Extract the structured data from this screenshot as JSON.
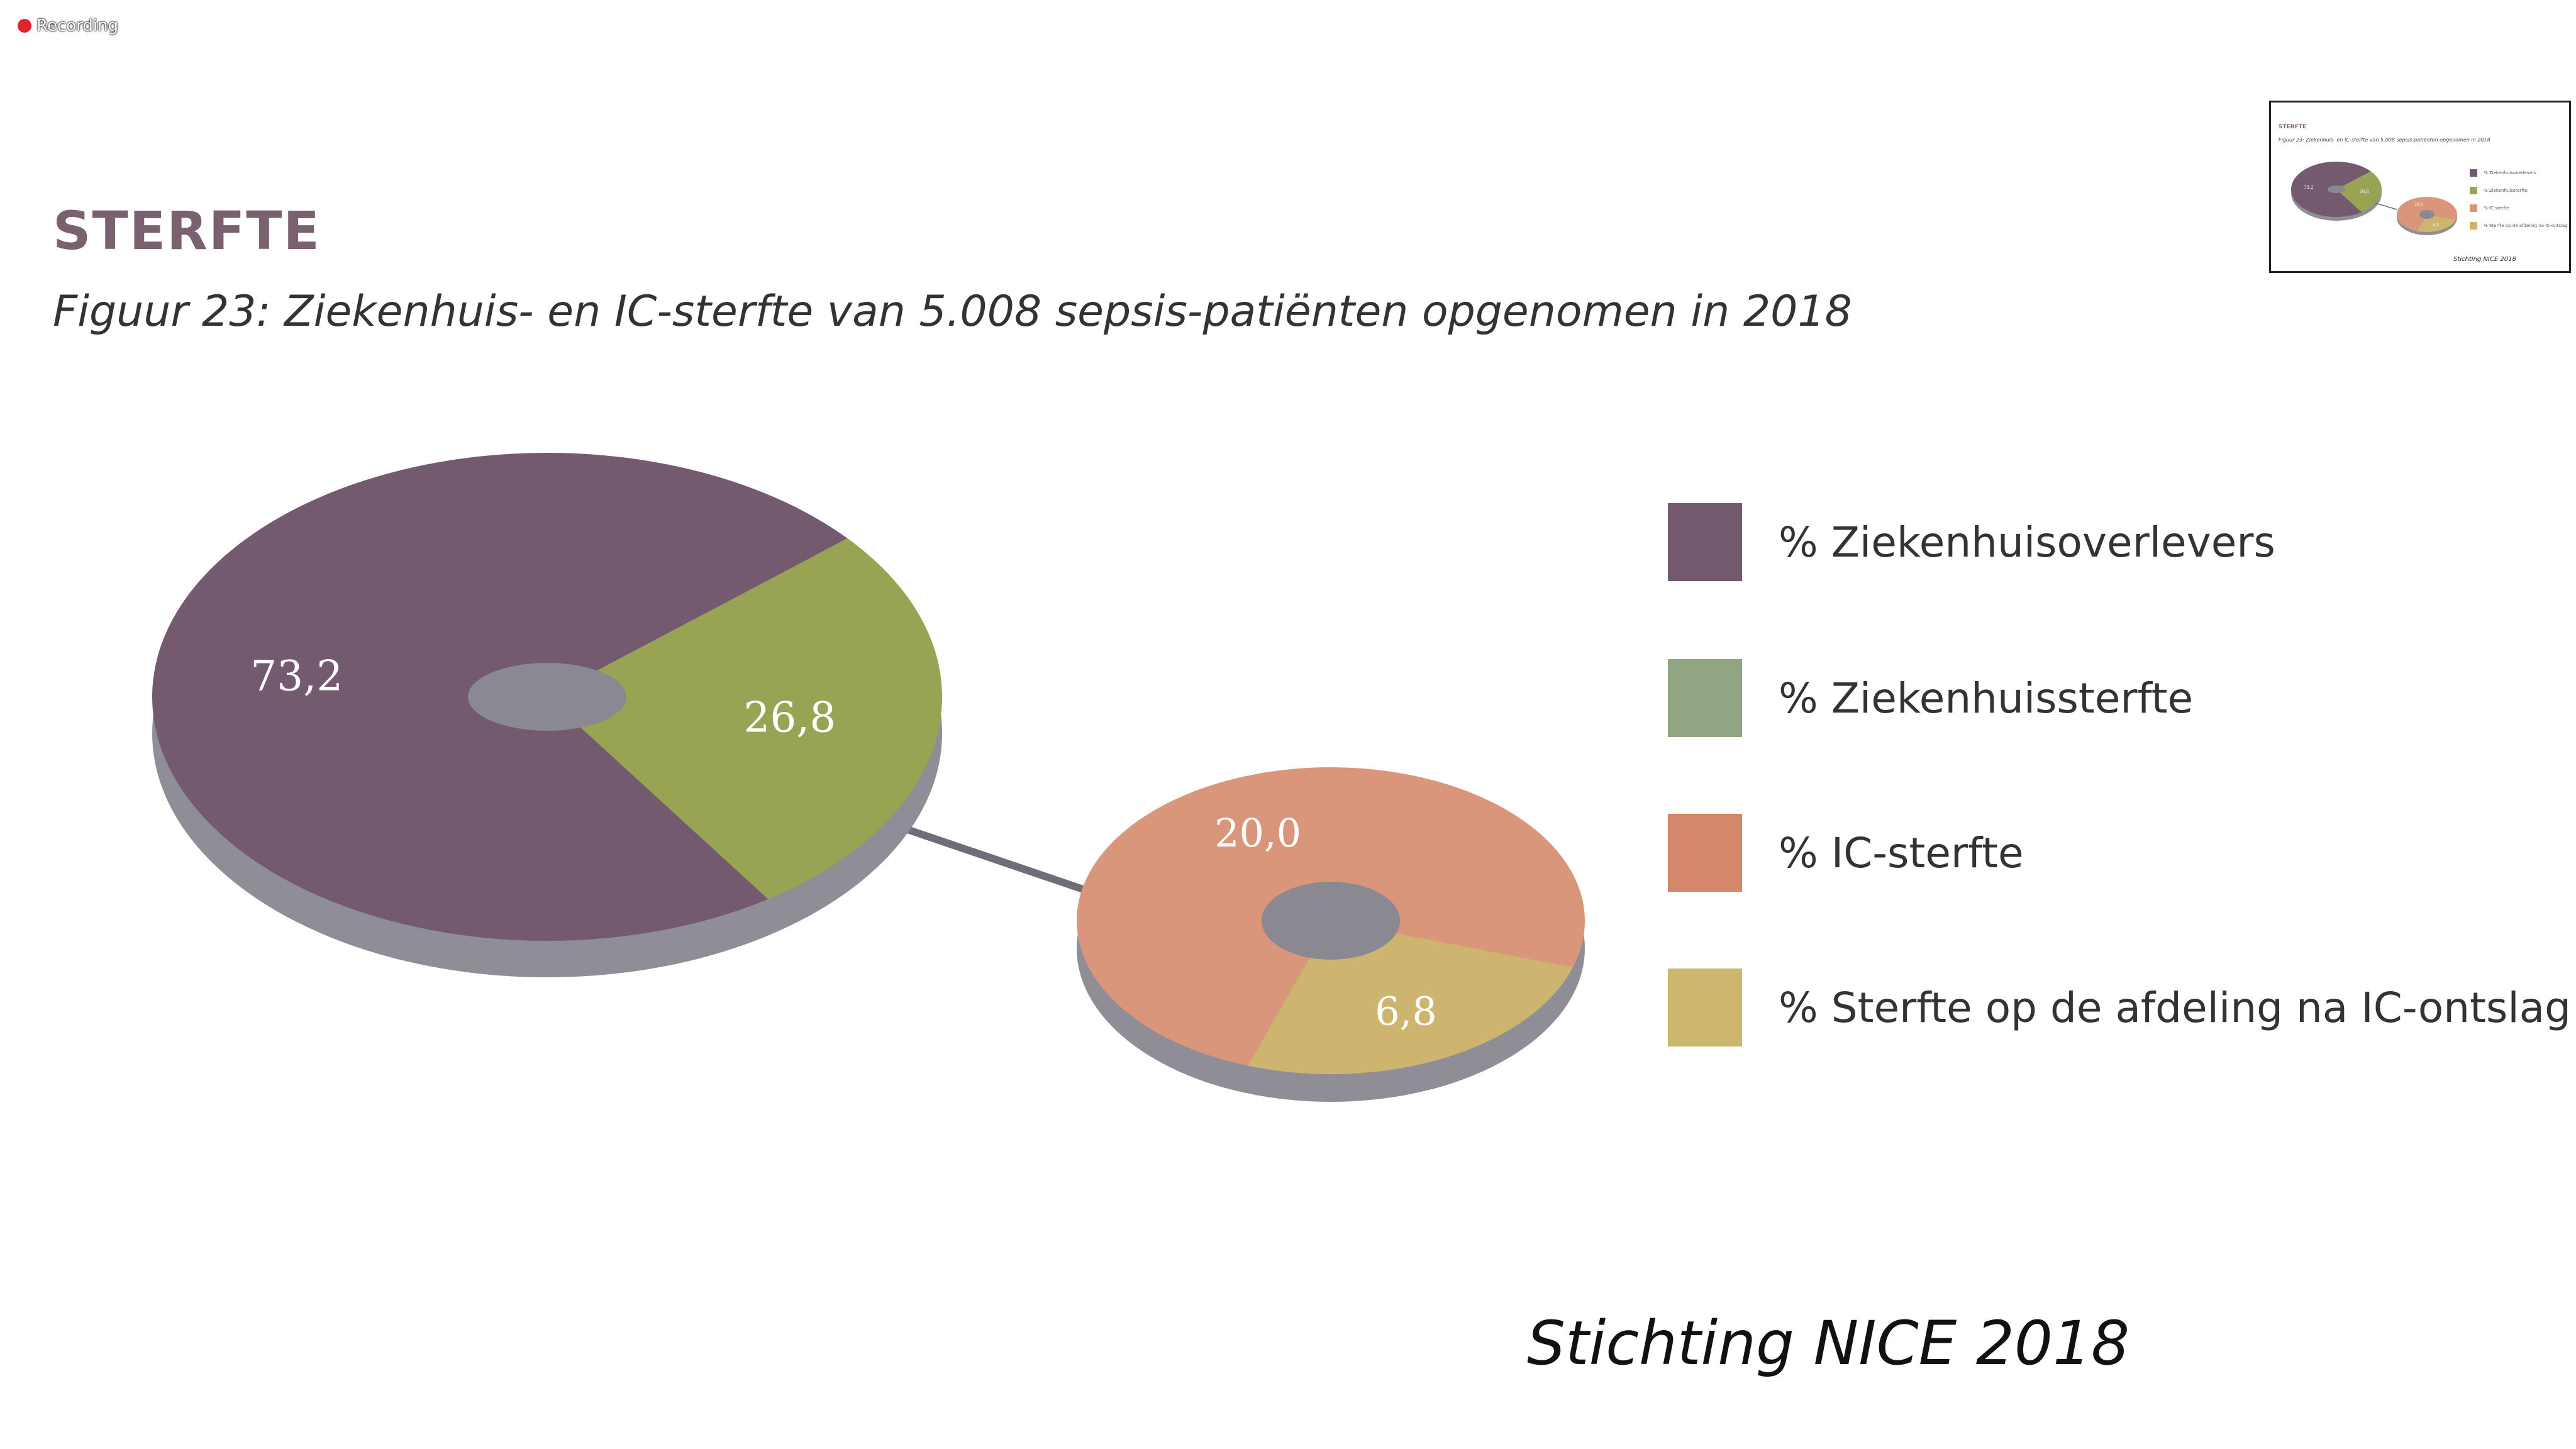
{
  "recording": {
    "label": "Recording"
  },
  "slide": {
    "title": "STERFTE",
    "subtitle": "Figuur 23: Ziekenhuis- en IC-sterfte van 5.008 sepsis-patiënten opgenomen in 2018",
    "source": "Stichting NICE 2018"
  },
  "colors": {
    "ziekenhuisoverlevers": "#735a6e",
    "ziekenhuissterfte": "#98a454",
    "ic_sterfte": "#d9967a",
    "sterfte_afdeling": "#cdb56f",
    "hole": "#8a8890",
    "side": "#8f8e96",
    "connector": "#6e6e78"
  },
  "legend": [
    {
      "label": "% Ziekenhuisoverlevers",
      "color": "#735a6e"
    },
    {
      "label": "% Ziekenhuissterfte",
      "color": "#92a582"
    },
    {
      "label": "% IC-sterfte",
      "color": "#d4876a"
    },
    {
      "label": "% Sterfte op de afdeling na IC-ontslag",
      "color": "#cdb76e"
    }
  ],
  "chart_data": [
    {
      "type": "pie",
      "title": "",
      "categories": [
        "% Ziekenhuisoverlevers",
        "% Ziekenhuissterfte"
      ],
      "values": [
        73.2,
        26.8
      ],
      "value_labels": [
        "73,2",
        "26,8"
      ]
    },
    {
      "type": "pie",
      "title": "",
      "categories": [
        "% IC-sterfte",
        "% Sterfte op de afdeling na IC-ontslag"
      ],
      "values": [
        20.0,
        6.8
      ],
      "value_labels": [
        "20,0",
        "6,8"
      ]
    }
  ],
  "thumbnail": {
    "title": "STERFTE",
    "subtitle": "Figuur 23: Ziekenhuis- en IC-sterfte van 5.008 sepsis-patiënten opgenomen in 2018",
    "legend": [
      "% Ziekenhuisoverlevers",
      "% Ziekenhuissterfte",
      "% IC-sterfte",
      "% Sterfte op de afdeling na IC-ontslag"
    ],
    "values": [
      "73,2",
      "26,8",
      "20,0",
      "6,8"
    ],
    "source": "Stichting NICE 2018"
  }
}
